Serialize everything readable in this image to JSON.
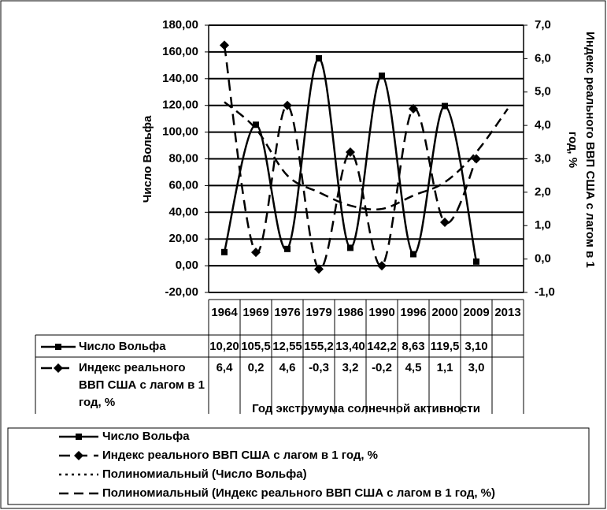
{
  "chart_data": {
    "type": "line",
    "xlabel": "Год экструмума солнечной активности",
    "ylabel": "Число Вольфа",
    "y2label": "Индекс реального ВВП США с лагом в 1 год, %",
    "categories": [
      "1964",
      "1969",
      "1976",
      "1979",
      "1986",
      "1990",
      "1996",
      "2000",
      "2009",
      "2013"
    ],
    "ylim": [
      -20,
      180
    ],
    "yticks": [
      {
        "value": -20,
        "label": "-20,00"
      },
      {
        "value": 0,
        "label": "0,00"
      },
      {
        "value": 20,
        "label": "20,00"
      },
      {
        "value": 40,
        "label": "40,00"
      },
      {
        "value": 60,
        "label": "60,00"
      },
      {
        "value": 80,
        "label": "80,00"
      },
      {
        "value": 100,
        "label": "100,00"
      },
      {
        "value": 120,
        "label": "120,00"
      },
      {
        "value": 140,
        "label": "140,00"
      },
      {
        "value": 160,
        "label": "160,00"
      },
      {
        "value": 180,
        "label": "180,00"
      }
    ],
    "y2lim": [
      -1,
      7
    ],
    "y2ticks": [
      {
        "value": -1,
        "label": "-1,0"
      },
      {
        "value": 0,
        "label": "0,0"
      },
      {
        "value": 1,
        "label": "1,0"
      },
      {
        "value": 2,
        "label": "2,0"
      },
      {
        "value": 3,
        "label": "3,0"
      },
      {
        "value": 4,
        "label": "4,0"
      },
      {
        "value": 5,
        "label": "5,0"
      },
      {
        "value": 6,
        "label": "6,0"
      },
      {
        "value": 7,
        "label": "7,0"
      }
    ],
    "grid": true,
    "series": [
      {
        "name": "Число Вольфа",
        "color": "#000000",
        "marker": "square",
        "dash": "solid",
        "values": [
          10.2,
          105.5,
          12.55,
          155.2,
          13.4,
          142.2,
          8.63,
          119.5,
          3.1,
          null
        ],
        "value_labels": [
          "10,20",
          "105,5",
          "12,55",
          "155,2",
          "13,40",
          "142,2",
          "8,63",
          "119,5",
          "3,10",
          null
        ]
      },
      {
        "name": "Индекс реального ВВП США с лагом в 1 год, %",
        "color": "#000000",
        "marker": "diamond",
        "dash": "long",
        "axis": "y2",
        "values": [
          6.4,
          0.2,
          4.6,
          -0.3,
          3.2,
          -0.2,
          4.5,
          1.1,
          3.0,
          null
        ],
        "value_labels": [
          "6,4",
          "0,2",
          "4,6",
          "-0,3",
          "3,2",
          "-0,2",
          "4,5",
          "1,1",
          "3,0",
          null
        ]
      },
      {
        "name": "Полиномиальный (Число Вольфа)",
        "color": "#000000",
        "marker": "none",
        "dash": "dot",
        "values": [
          null,
          null,
          null,
          null,
          null,
          null,
          null,
          null,
          null,
          null
        ]
      },
      {
        "name": "Полиномиальный (Индекс реального ВВП США с лагом в 1 год, %)",
        "color": "#000000",
        "marker": "none",
        "dash": "dash",
        "axis": "y2",
        "values": [
          4.7,
          3.9,
          2.5,
          2.0,
          1.6,
          1.5,
          1.9,
          2.3,
          3.2,
          4.5
        ]
      }
    ]
  }
}
